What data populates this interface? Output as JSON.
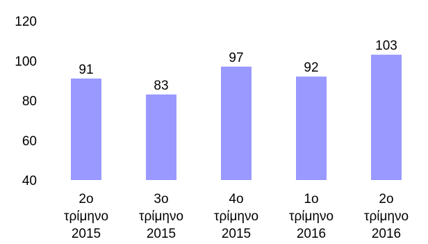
{
  "chart_data": {
    "type": "bar",
    "categories": [
      [
        "2ο",
        "τρίμηνο",
        "2015"
      ],
      [
        "3ο",
        "τρίμηνο",
        "2015"
      ],
      [
        "4ο",
        "τρίμηνο",
        "2015"
      ],
      [
        "1ο",
        "τρίμηνο",
        "2016"
      ],
      [
        "2ο",
        "τρίμηνο",
        "2016"
      ]
    ],
    "values": [
      91,
      83,
      97,
      92,
      103
    ],
    "data_labels": [
      "91",
      "83",
      "97",
      "92",
      "103"
    ],
    "y_ticks": [
      "40",
      "60",
      "80",
      "100",
      "120"
    ],
    "ylim": [
      40,
      120
    ],
    "grid": false,
    "legend": "none",
    "bar_color": "#9999ff",
    "title": "",
    "xlabel": "",
    "ylabel": ""
  }
}
